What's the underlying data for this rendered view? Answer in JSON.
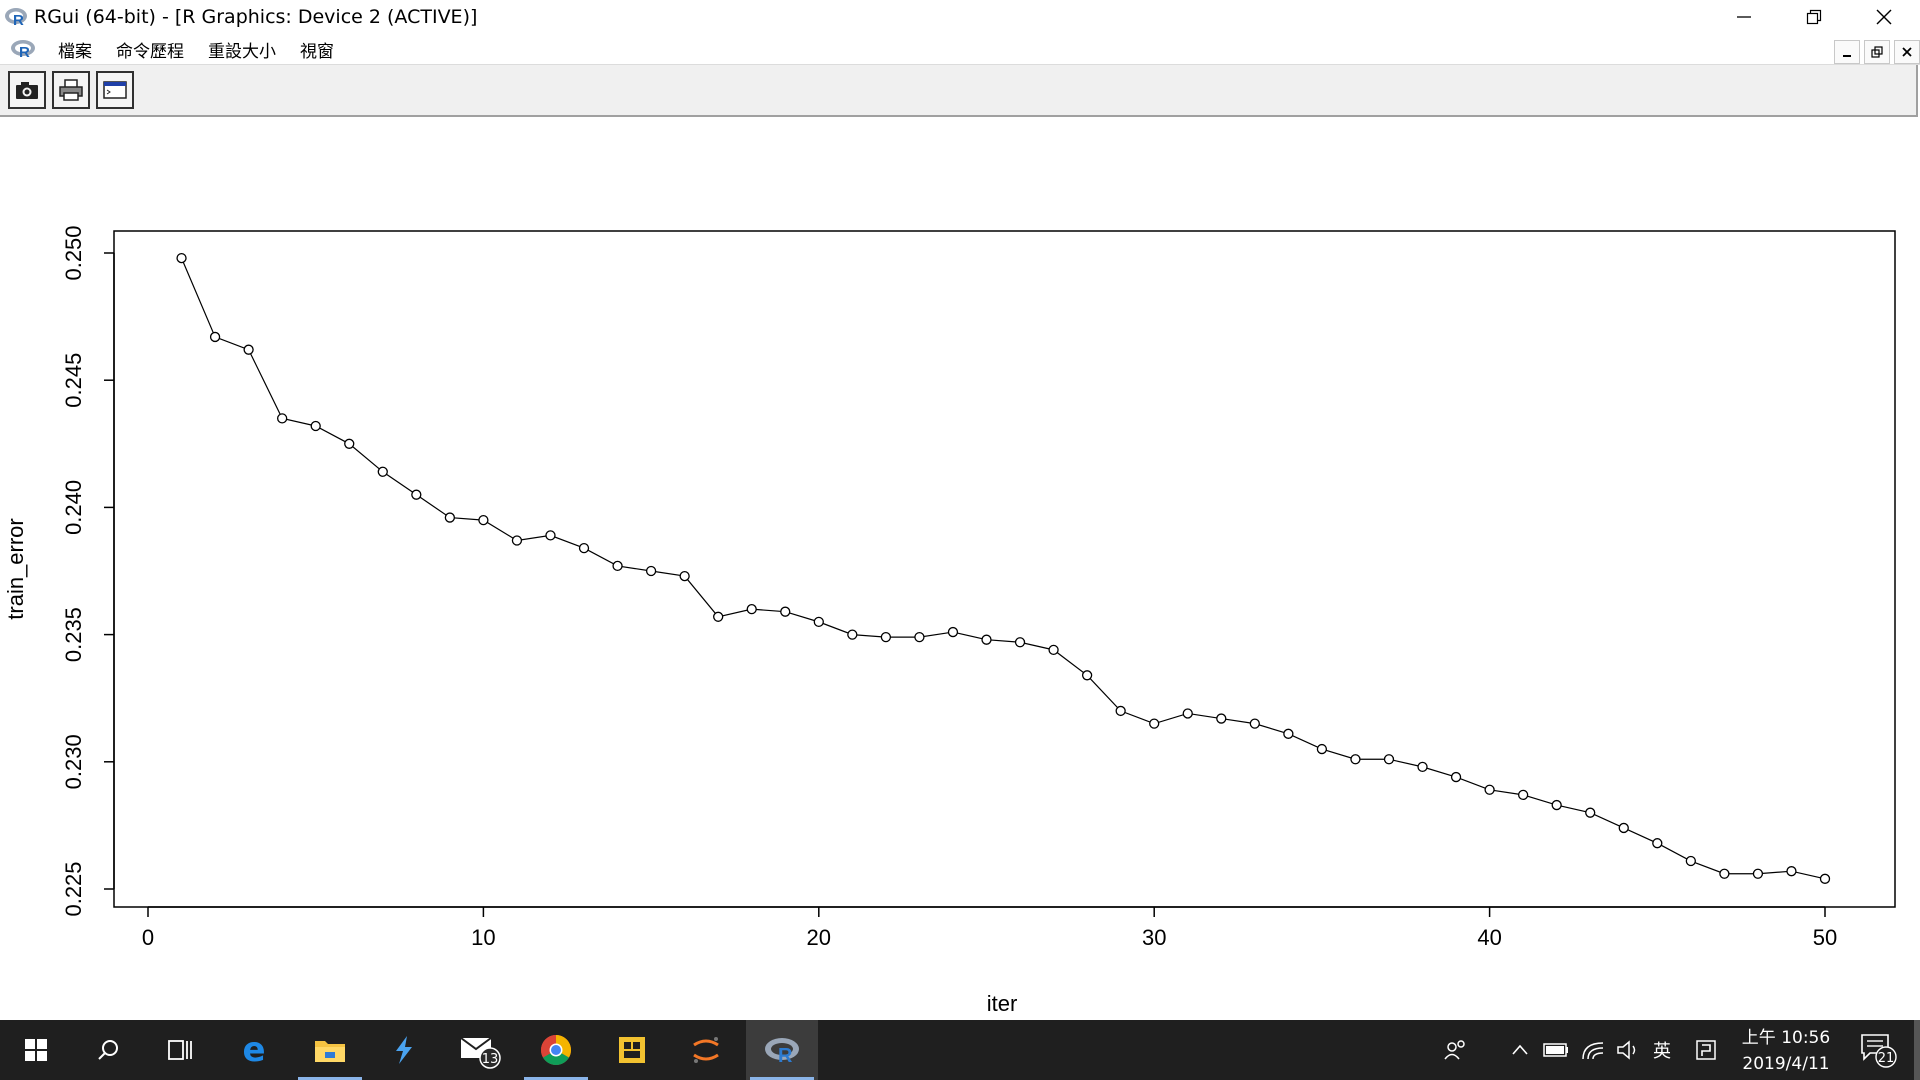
{
  "window": {
    "title": "RGui (64-bit) - [R Graphics: Device 2 (ACTIVE)]"
  },
  "menu": {
    "items": [
      "檔案",
      "命令歷程",
      "重設大小",
      "視窗"
    ]
  },
  "toolbar": {
    "buttons": [
      "camera-icon",
      "printer-icon",
      "window-icon"
    ]
  },
  "chart_data": {
    "type": "line",
    "markers": "open-circle",
    "xlabel": "iter",
    "ylabel": "train_error",
    "xlim": [
      0,
      50
    ],
    "ylim": [
      0.225,
      0.25
    ],
    "xticks": [
      "0",
      "10",
      "20",
      "30",
      "40",
      "50"
    ],
    "yticks": [
      "0.225",
      "0.230",
      "0.235",
      "0.240",
      "0.245",
      "0.250"
    ],
    "x": [
      1,
      2,
      3,
      4,
      5,
      6,
      7,
      8,
      9,
      10,
      11,
      12,
      13,
      14,
      15,
      16,
      17,
      18,
      19,
      20,
      21,
      22,
      23,
      24,
      25,
      26,
      27,
      28,
      29,
      30,
      31,
      32,
      33,
      34,
      35,
      36,
      37,
      38,
      39,
      40,
      41,
      42,
      43,
      44,
      45,
      46,
      47,
      48,
      49,
      50
    ],
    "y": [
      0.2498,
      0.2467,
      0.2462,
      0.2435,
      0.2432,
      0.2425,
      0.2414,
      0.2405,
      0.2396,
      0.2395,
      0.2387,
      0.2389,
      0.2384,
      0.2377,
      0.2375,
      0.2373,
      0.2357,
      0.236,
      0.2359,
      0.2355,
      0.235,
      0.2349,
      0.2349,
      0.2351,
      0.2348,
      0.2347,
      0.2344,
      0.2334,
      0.232,
      0.2315,
      0.2319,
      0.2317,
      0.2315,
      0.2311,
      0.2305,
      0.2301,
      0.2301,
      0.2298,
      0.2294,
      0.2289,
      0.2287,
      0.2283,
      0.228,
      0.2274,
      0.2268,
      0.2261,
      0.2256,
      0.2256,
      0.2257,
      0.2254
    ],
    "colors": {
      "line": "#000000",
      "points": "#000000"
    }
  },
  "taskbar": {
    "apps": [
      "start-icon",
      "search-icon",
      "task-view-icon",
      "edge-icon",
      "file-explorer-icon",
      "visual-studio-icon",
      "mail-icon",
      "chrome-icon",
      "sticky-app-icon",
      "jupyter-icon",
      "r-gui-icon"
    ],
    "mail_badge": "13",
    "input_mode": "英",
    "clock_time": "上午 10:56",
    "clock_date": "2019/4/11",
    "notification_count": "21"
  }
}
